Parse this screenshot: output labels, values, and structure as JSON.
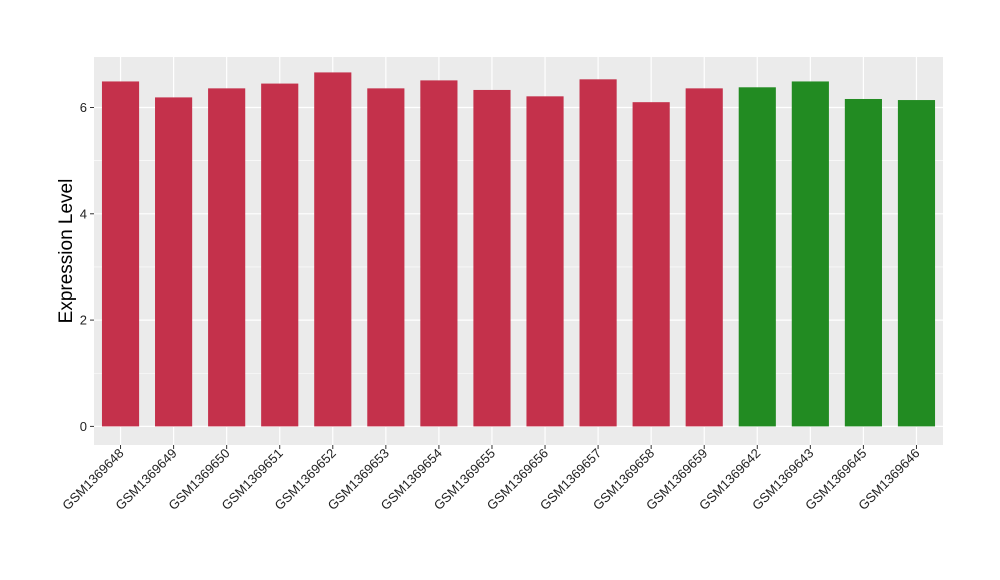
{
  "chart_data": {
    "type": "bar",
    "ylabel": "Expression Level",
    "xlabel": "",
    "ylim": [
      -0.35,
      6.95
    ],
    "yticks": [
      0,
      2,
      4,
      6
    ],
    "grid": true,
    "panel_background": "#ebebeb",
    "grid_color": "#ffffff",
    "categories": [
      "GSM1369648",
      "GSM1369649",
      "GSM1369650",
      "GSM1369651",
      "GSM1369652",
      "GSM1369653",
      "GSM1369654",
      "GSM1369655",
      "GSM1369656",
      "GSM1369657",
      "GSM1369658",
      "GSM1369659",
      "GSM1369642",
      "GSM1369643",
      "GSM1369645",
      "GSM1369646"
    ],
    "values": [
      6.49,
      6.19,
      6.36,
      6.45,
      6.66,
      6.36,
      6.51,
      6.33,
      6.21,
      6.53,
      6.1,
      6.36,
      6.38,
      6.49,
      6.16,
      6.14
    ],
    "bar_colors": [
      "#c4314b",
      "#c4314b",
      "#c4314b",
      "#c4314b",
      "#c4314b",
      "#c4314b",
      "#c4314b",
      "#c4314b",
      "#c4314b",
      "#c4314b",
      "#c4314b",
      "#c4314b",
      "#228b22",
      "#228b22",
      "#228b22",
      "#228b22"
    ]
  }
}
